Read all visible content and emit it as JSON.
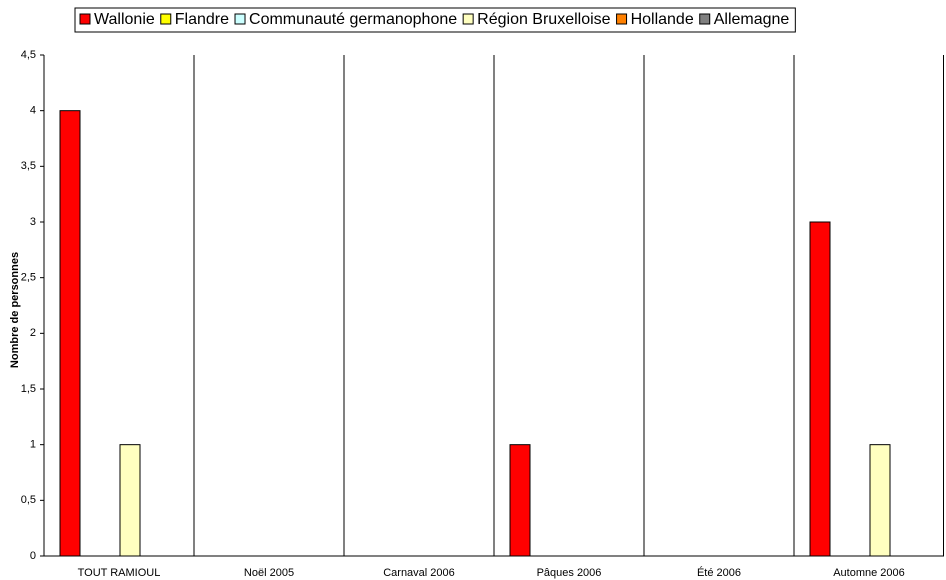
{
  "chart_data": {
    "type": "bar",
    "y_label": "Nombre de personnes",
    "categories": [
      "TOUT RAMIOUL",
      "Noël 2005",
      "Carnaval 2006",
      "Pâques 2006",
      "Été 2006",
      "Automne 2006"
    ],
    "series": [
      {
        "name": "Wallonie",
        "color": "#ff0000",
        "values": [
          4,
          0,
          0,
          1,
          0,
          3
        ]
      },
      {
        "name": "Flandre",
        "color": "#ffff00",
        "values": [
          0,
          0,
          0,
          0,
          0,
          0
        ]
      },
      {
        "name": "Communauté germanophone",
        "color": "#ccffff",
        "values": [
          0,
          0,
          0,
          0,
          0,
          0
        ]
      },
      {
        "name": "Région Bruxelloise",
        "color": "#ffffc0",
        "values": [
          1,
          0,
          0,
          0,
          0,
          1
        ]
      },
      {
        "name": "Hollande",
        "color": "#ff8000",
        "values": [
          0,
          0,
          0,
          0,
          0,
          0
        ]
      },
      {
        "name": "Allemagne",
        "color": "#808080",
        "values": [
          0,
          0,
          0,
          0,
          0,
          0
        ]
      }
    ],
    "ylim": [
      0,
      4.5
    ],
    "yticks": [
      0,
      {
        "value": 0.5,
        "label": "0,5"
      },
      1,
      {
        "value": 1.5,
        "label": "1,5"
      },
      2,
      {
        "value": 2.5,
        "label": "2,5"
      },
      3,
      {
        "value": 3.5,
        "label": "3,5"
      },
      4,
      {
        "value": 4.5,
        "label": "4,5"
      }
    ],
    "legend": "top"
  }
}
